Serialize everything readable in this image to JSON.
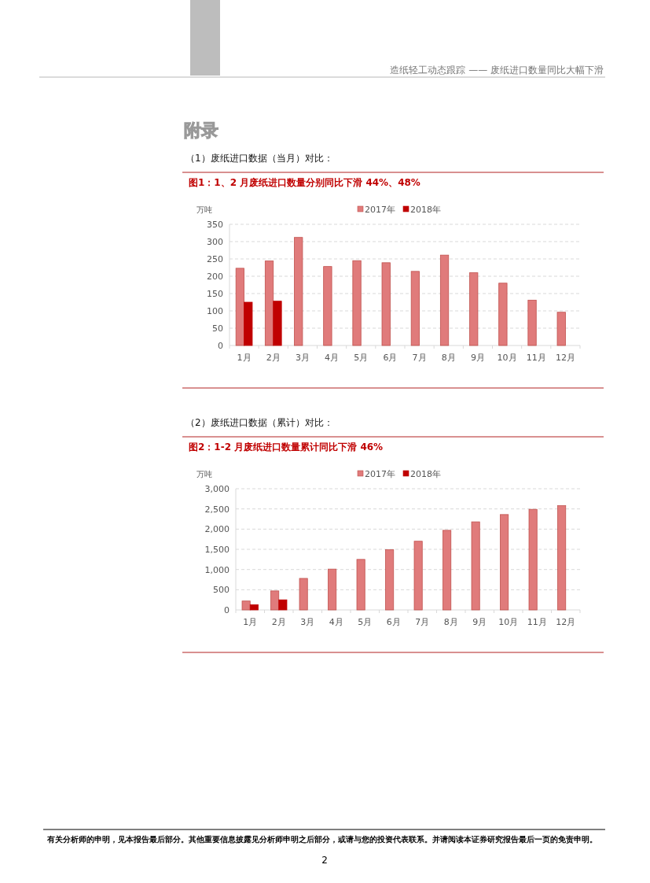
{
  "chart_data": [
    {
      "type": "bar",
      "title": "图1：1、2 月废纸进口数量分别同比下滑 44%、48%",
      "subtitle": "（1）废纸进口数据（当月）对比：",
      "ylabel": "万吨",
      "annotations": [
        "造纸轻工动态跟踪 —— 废纸进口数量同比大幅下滑",
        "附录"
      ],
      "categories": [
        "1月",
        "2月",
        "3月",
        "4月",
        "5月",
        "6月",
        "7月",
        "8月",
        "9月",
        "10月",
        "11月",
        "12月"
      ],
      "series": [
        {
          "name": "2017年",
          "color": "#e07b7b",
          "values": [
            223,
            244,
            312,
            228,
            245,
            239,
            214,
            261,
            210,
            180,
            131,
            96
          ]
        },
        {
          "name": "2018年",
          "color": "#c00000",
          "values": [
            125,
            128,
            null,
            null,
            null,
            null,
            null,
            null,
            null,
            null,
            null,
            null
          ]
        }
      ],
      "ylim": [
        0,
        350
      ],
      "yticks": [
        0,
        50,
        100,
        150,
        200,
        250,
        300,
        350
      ],
      "grid": "y",
      "legend": "top"
    },
    {
      "type": "bar",
      "title": "图2：1-2 月废纸进口数量累计同比下滑 46%",
      "subtitle": "（2）废纸进口数据（累计）对比：",
      "ylabel": "万吨",
      "annotations": [
        "有关分析师的申明，见本报告最后部分。其他重要信息披露见分析师申明之后部分，或请与您的投资代表联系。并请阅读本证券研究报告最后一页的免责申明。",
        "2"
      ],
      "categories": [
        "1月",
        "2月",
        "3月",
        "4月",
        "5月",
        "6月",
        "7月",
        "8月",
        "9月",
        "10月",
        "11月",
        "12月"
      ],
      "series": [
        {
          "name": "2017年",
          "color": "#e07b7b",
          "values": [
            220,
            470,
            780,
            1010,
            1250,
            1490,
            1700,
            1970,
            2180,
            2360,
            2490,
            2580
          ]
        },
        {
          "name": "2018年",
          "color": "#c00000",
          "values": [
            130,
            250,
            null,
            null,
            null,
            null,
            null,
            null,
            null,
            null,
            null,
            null
          ]
        }
      ],
      "ylim": [
        0,
        3000
      ],
      "yticks": [
        0,
        {
          "value": 500,
          "label": "500"
        },
        {
          "value": 1000,
          "label": "1,000"
        },
        {
          "value": 1500,
          "label": "1,500"
        },
        {
          "value": 2000,
          "label": "2,000"
        },
        {
          "value": 2500,
          "label": "2,500"
        },
        {
          "value": 3000,
          "label": "3,000"
        }
      ],
      "grid": "y",
      "legend": "top"
    }
  ]
}
